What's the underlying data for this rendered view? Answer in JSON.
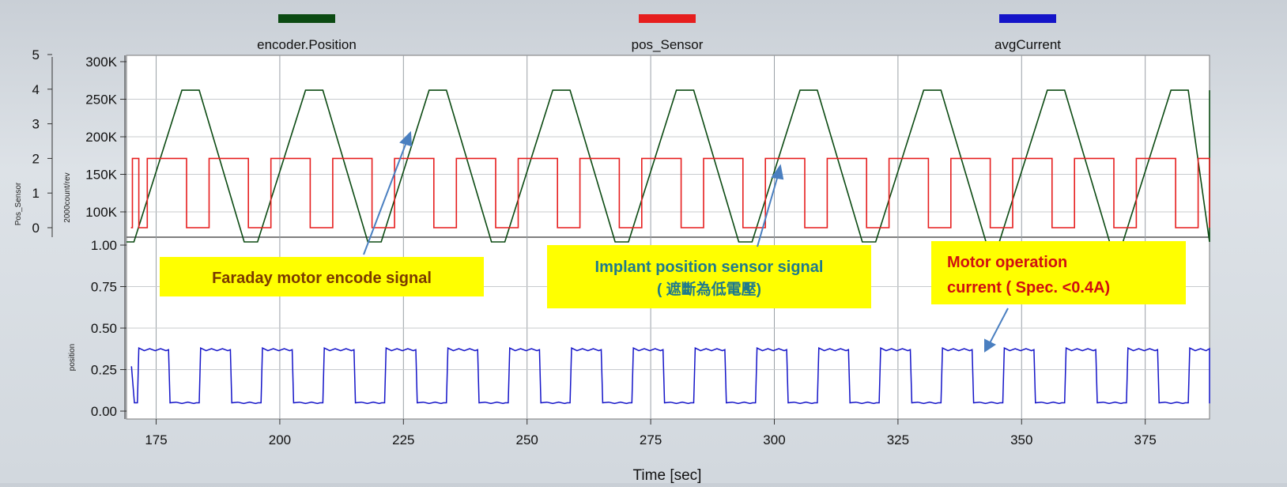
{
  "chart_data": {
    "type": "line",
    "legend": {
      "placement": "top",
      "entries": [
        {
          "label": "encoder.Position",
          "color": "#0b4a12"
        },
        {
          "label": "pos_Sensor",
          "color": "#e61e1e"
        },
        {
          "label": "avgCurrent",
          "color": "#1414c8"
        }
      ]
    },
    "xlabel": "Time [sec]",
    "xlim": [
      169,
      388
    ],
    "x_ticks": [
      175,
      200,
      225,
      250,
      275,
      300,
      325,
      350,
      375
    ],
    "grid": true,
    "upper_panel": {
      "left_axis": {
        "label": "Pos_Sensor",
        "ticks": [
          "5",
          "4",
          "3",
          "2",
          "1",
          "0"
        ],
        "ylim": [
          0,
          5
        ]
      },
      "right_axis": {
        "label": "2000count/rev",
        "ticks": [
          "300K",
          "250K",
          "200K",
          "150K",
          "100K"
        ],
        "ylim": [
          60000,
          300000
        ]
      },
      "series": [
        {
          "name": "encoder.Position",
          "color": "#0b4a12",
          "period_sec": 25,
          "first_rise_sec": 170.5,
          "low": 60000,
          "high": 262000,
          "rise_sec": 9.7,
          "top_sec": 3.5,
          "fall_sec": 9.1,
          "bottom_sec": 2.7
        },
        {
          "name": "pos_Sensor",
          "color": "#e61e1e",
          "period_sec": 25,
          "first_high_sec": 170.2,
          "high_duration_sec": 1.3,
          "repeat_high_sec": 173.2,
          "repeat_high_duration_sec": 15.9,
          "low": 0,
          "high": 2
        }
      ]
    },
    "lower_panel": {
      "axis": {
        "label": "position",
        "ticks": [
          "1.00",
          "0.75",
          "0.50",
          "0.25",
          "0.00"
        ],
        "ylim": [
          0,
          1.0
        ]
      },
      "series": [
        {
          "name": "avgCurrent",
          "color": "#1414c8",
          "period_sec": 12.5,
          "first_high_sec": 171.2,
          "high_duration_sec": 6.3,
          "low": 0.05,
          "high": 0.37
        }
      ]
    },
    "annotations": [
      {
        "text": "Faraday motor encode signal",
        "color": "#7a3a00"
      },
      {
        "line1": "Implant position sensor signal",
        "line2": "( 遮斷為低電壓)",
        "color": "#1f7a8c"
      },
      {
        "line1": "Motor operation",
        "line2": "current ( Spec. <0.4A)",
        "color": "#d01010"
      }
    ]
  }
}
